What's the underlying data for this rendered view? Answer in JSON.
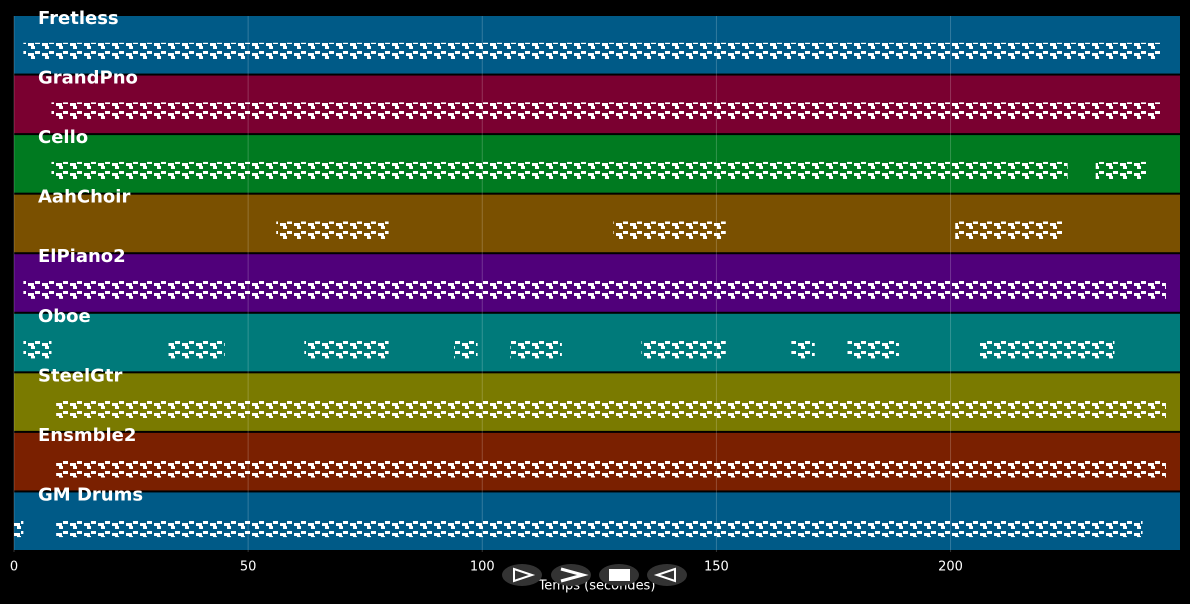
{
  "chart_data": {
    "type": "pianoroll",
    "xlabel": "Temps (secondes)",
    "xlim": [
      0,
      249
    ],
    "xticks": [
      0,
      50,
      100,
      150,
      200
    ],
    "grid": true,
    "tracks": [
      {
        "name": "Fretless",
        "color": "#005a87",
        "segments": [
          [
            2,
            245
          ]
        ]
      },
      {
        "name": "GrandPno",
        "color": "#7a0030",
        "segments": [
          [
            8,
            245
          ]
        ]
      },
      {
        "name": "Cello",
        "color": "#007a20",
        "segments": [
          [
            8,
            225
          ],
          [
            231,
            242
          ]
        ]
      },
      {
        "name": "AahChoir",
        "color": "#7a5000",
        "segments": [
          [
            56,
            80
          ],
          [
            128,
            152
          ],
          [
            201,
            224
          ]
        ]
      },
      {
        "name": "ElPiano2",
        "color": "#50007a",
        "segments": [
          [
            2,
            246
          ]
        ]
      },
      {
        "name": "Oboe",
        "color": "#007a7a",
        "segments": [
          [
            2,
            8
          ],
          [
            33,
            45
          ],
          [
            62,
            80
          ],
          [
            94,
            99
          ],
          [
            106,
            117
          ],
          [
            134,
            152
          ],
          [
            166,
            171
          ],
          [
            178,
            189
          ],
          [
            206,
            235
          ]
        ]
      },
      {
        "name": "SteelGtr",
        "color": "#7a7a00",
        "segments": [
          [
            9,
            246
          ]
        ]
      },
      {
        "name": "Ensmble2",
        "color": "#7a2000",
        "segments": [
          [
            9,
            246
          ]
        ]
      },
      {
        "name": "GM Drums",
        "color": "#005a87",
        "segments": [
          [
            0,
            2
          ],
          [
            9,
            241
          ]
        ]
      }
    ]
  }
}
